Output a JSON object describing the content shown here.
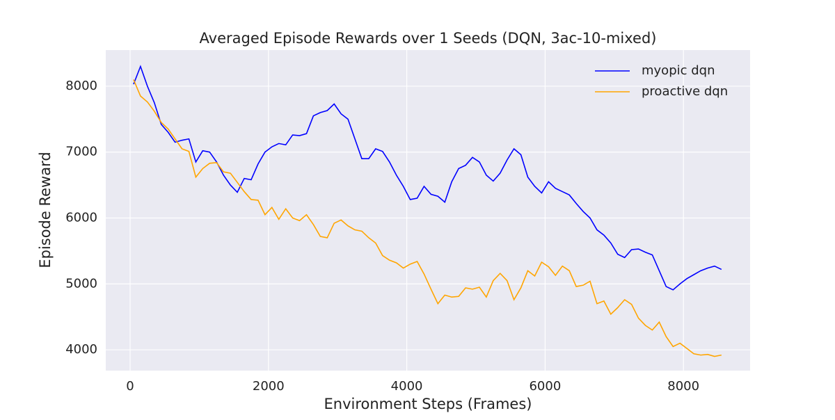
{
  "chart_data": {
    "type": "line",
    "title": "Averaged Episode Rewards over 1 Seeds (DQN, 3ac-10-mixed)",
    "x_label": "Environment Steps (Frames)",
    "y_label": "Episode Reward",
    "x": [
      50,
      150,
      250,
      350,
      450,
      550,
      650,
      750,
      850,
      950,
      1050,
      1150,
      1250,
      1350,
      1450,
      1550,
      1650,
      1750,
      1850,
      1950,
      2050,
      2150,
      2250,
      2350,
      2450,
      2550,
      2650,
      2750,
      2850,
      2950,
      3050,
      3150,
      3250,
      3350,
      3450,
      3550,
      3650,
      3750,
      3850,
      3950,
      4050,
      4150,
      4250,
      4350,
      4450,
      4550,
      4650,
      4750,
      4850,
      4950,
      5050,
      5150,
      5250,
      5350,
      5450,
      5550,
      5650,
      5750,
      5850,
      5950,
      6050,
      6150,
      6250,
      6350,
      6450,
      6550,
      6650,
      6750,
      6850,
      6950,
      7050,
      7150,
      7250,
      7350,
      7450,
      7550,
      7650,
      7750,
      7850,
      7950,
      8050,
      8150,
      8250,
      8350,
      8450,
      8550
    ],
    "series": [
      {
        "name": "myopic dqn",
        "color": "#0000ff",
        "values": [
          8030,
          8300,
          8000,
          7750,
          7420,
          7300,
          7150,
          7180,
          7200,
          6850,
          7020,
          7000,
          6850,
          6650,
          6500,
          6390,
          6600,
          6580,
          6820,
          7000,
          7080,
          7130,
          7110,
          7260,
          7250,
          7280,
          7550,
          7600,
          7630,
          7730,
          7580,
          7500,
          7200,
          6900,
          6900,
          7050,
          7010,
          6850,
          6650,
          6480,
          6280,
          6300,
          6480,
          6360,
          6330,
          6240,
          6550,
          6750,
          6800,
          6920,
          6850,
          6650,
          6560,
          6680,
          6880,
          7050,
          6960,
          6620,
          6480,
          6380,
          6550,
          6450,
          6400,
          6350,
          6220,
          6100,
          6000,
          5820,
          5740,
          5620,
          5450,
          5400,
          5520,
          5530,
          5480,
          5440,
          5200,
          4960,
          4910,
          5000,
          5080,
          5140,
          5200,
          5240,
          5270,
          5220
        ]
      },
      {
        "name": "proactive dqn",
        "color": "#ffa500",
        "values": [
          8100,
          7850,
          7760,
          7620,
          7450,
          7350,
          7200,
          7050,
          7010,
          6620,
          6750,
          6830,
          6840,
          6700,
          6680,
          6540,
          6400,
          6280,
          6270,
          6050,
          6160,
          5980,
          6140,
          6000,
          5960,
          6050,
          5900,
          5720,
          5700,
          5920,
          5970,
          5880,
          5820,
          5800,
          5700,
          5620,
          5430,
          5360,
          5320,
          5240,
          5300,
          5340,
          5150,
          4920,
          4700,
          4830,
          4800,
          4810,
          4940,
          4920,
          4950,
          4800,
          5050,
          5160,
          5050,
          4760,
          4940,
          5200,
          5120,
          5330,
          5260,
          5130,
          5270,
          5200,
          4960,
          4980,
          5040,
          4700,
          4740,
          4540,
          4640,
          4760,
          4690,
          4480,
          4370,
          4300,
          4420,
          4200,
          4050,
          4100,
          4020,
          3940,
          3920,
          3930,
          3900,
          3920
        ]
      }
    ],
    "xlim": [
      -352,
      8964
    ],
    "ylim": [
      3684,
      8548
    ],
    "xticks": [
      0,
      2000,
      4000,
      6000,
      8000
    ],
    "yticks": [
      4000,
      5000,
      6000,
      7000,
      8000
    ],
    "grid": true,
    "legend": "upper right"
  }
}
